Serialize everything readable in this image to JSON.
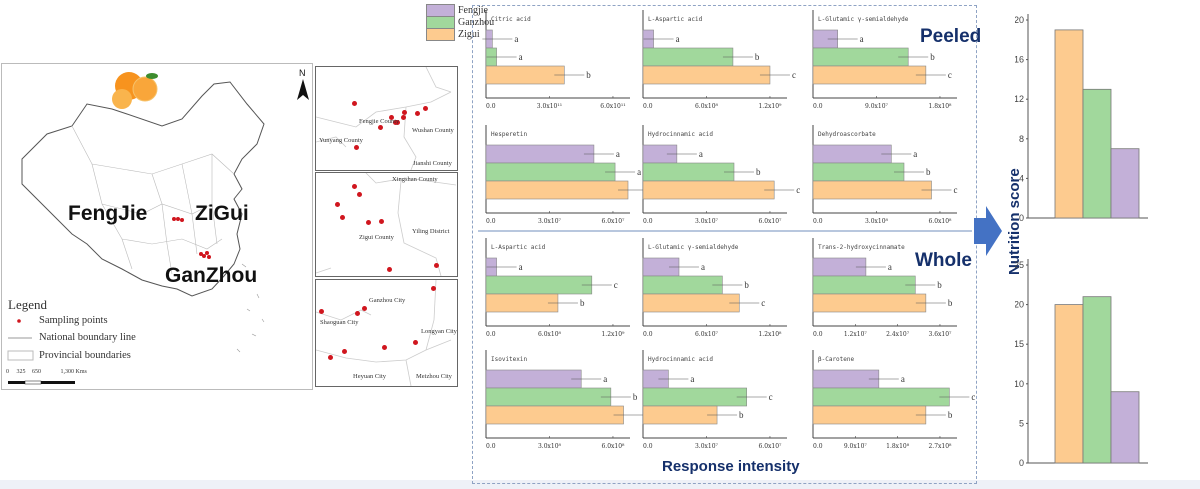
{
  "map": {
    "cities": [
      "FengJie",
      "ZiGui",
      "GanZhou"
    ],
    "north_label": "N",
    "legend": {
      "title": "Legend",
      "items": [
        "Sampling points",
        "National boundary line",
        "Provincial boundaries"
      ]
    },
    "scale": {
      "ticks": [
        "0",
        "325",
        "650",
        "1,300"
      ],
      "unit": "Kms"
    },
    "insets": [
      {
        "labels": [
          "Fengjie  County",
          "Wushan County",
          "Yunyang  County",
          "Jianshi County"
        ]
      },
      {
        "labels": [
          "Xingshan County",
          "Yiling District",
          "Zigui County"
        ]
      },
      {
        "labels": [
          "Ganzhou City",
          "Shaoguan City",
          "Longyan City",
          "Heyuan City",
          "Meizhou City"
        ]
      }
    ]
  },
  "legend_series": [
    {
      "name": "Fengjie",
      "color": "#c3b0d8"
    },
    {
      "name": "Ganzhou",
      "color": "#a1d89c"
    },
    {
      "name": "Zigui",
      "color": "#fdcb8f"
    }
  ],
  "labels": {
    "peeled": "Peeled",
    "whole": "Whole",
    "response_intensity": "Response intensity",
    "nutrition_score": "Nutrition score"
  },
  "chart_data": [
    {
      "type": "bar",
      "orientation": "horizontal",
      "group": "Peeled",
      "title": "Citric acid",
      "series_order": [
        "Fengjie",
        "Ganzhou",
        "Zigui"
      ],
      "values": [
        30000000000.0,
        50000000000.0,
        370000000000.0
      ],
      "sig": [
        "a",
        "a",
        "b"
      ],
      "xlim": [
        0,
        600000000000.0
      ],
      "tick_labels": [
        "0.0",
        "3.0x10¹¹",
        "6.0x10¹¹"
      ],
      "tick_values": [
        0,
        300000000000.0,
        600000000000.0
      ]
    },
    {
      "type": "bar",
      "orientation": "horizontal",
      "group": "Peeled",
      "title": "L-Aspartic acid",
      "series_order": [
        "Fengjie",
        "Ganzhou",
        "Zigui"
      ],
      "values": [
        100000000.0,
        850000000.0,
        1200000000.0
      ],
      "sig": [
        "a",
        "b",
        "c"
      ],
      "xlim": [
        0,
        1200000000.0
      ],
      "tick_labels": [
        "0.0",
        "6.0x10⁸",
        "1.2x10⁹"
      ],
      "tick_values": [
        0,
        600000000.0,
        1200000000.0
      ]
    },
    {
      "type": "bar",
      "orientation": "horizontal",
      "group": "Peeled",
      "title": "L-Glutamic γ-semialdehyde",
      "series_order": [
        "Fengjie",
        "Ganzhou",
        "Zigui"
      ],
      "values": [
        35000000.0,
        135000000.0,
        160000000.0
      ],
      "sig": [
        "a",
        "b",
        "c"
      ],
      "xlim": [
        0,
        180000000.0
      ],
      "tick_labels": [
        "0.0",
        "9.0x10⁷",
        "1.8x10⁸"
      ],
      "tick_values": [
        0,
        90000000.0,
        180000000.0
      ]
    },
    {
      "type": "bar",
      "orientation": "horizontal",
      "group": "Peeled",
      "title": "Hesperetin",
      "series_order": [
        "Fengjie",
        "Ganzhou",
        "Zigui"
      ],
      "values": [
        51000000.0,
        61000000.0,
        72000000.0
      ],
      "sig": [
        "a",
        "a",
        "b"
      ],
      "xlim": [
        0,
        60000000.0
      ],
      "tick_labels": [
        "0.0",
        "3.0x10⁷",
        "6.0x10⁷"
      ],
      "tick_values": [
        0,
        30000000.0,
        60000000.0
      ]
    },
    {
      "type": "bar",
      "orientation": "horizontal",
      "group": "Peeled",
      "title": "Hydrocinnamic acid",
      "series_order": [
        "Fengjie",
        "Ganzhou",
        "Zigui"
      ],
      "values": [
        16000000.0,
        43000000.0,
        62000000.0
      ],
      "sig": [
        "a",
        "b",
        "c"
      ],
      "xlim": [
        0,
        60000000.0
      ],
      "tick_labels": [
        "0.0",
        "3.0x10⁷",
        "6.0x10⁷"
      ],
      "tick_values": [
        0,
        30000000.0,
        60000000.0
      ]
    },
    {
      "type": "bar",
      "orientation": "horizontal",
      "group": "Peeled",
      "title": "Dehydroascorbate",
      "series_order": [
        "Fengjie",
        "Ganzhou",
        "Zigui"
      ],
      "values": [
        370000000.0,
        430000000.0,
        560000000.0
      ],
      "sig": [
        "a",
        "b",
        "c"
      ],
      "xlim": [
        0,
        600000000.0
      ],
      "tick_labels": [
        "0.0",
        "3.0x10⁸",
        "6.0x10⁸"
      ],
      "tick_values": [
        0,
        300000000.0,
        600000000.0
      ]
    },
    {
      "type": "bar",
      "orientation": "horizontal",
      "group": "Whole",
      "title": "L-Aspartic acid",
      "series_order": [
        "Fengjie",
        "Ganzhou",
        "Zigui"
      ],
      "values": [
        100000000.0,
        1000000000.0,
        680000000.0
      ],
      "sig": [
        "a",
        "c",
        "b"
      ],
      "xlim": [
        0,
        1200000000.0
      ],
      "tick_labels": [
        "0.0",
        "6.0x10⁸",
        "1.2x10⁹"
      ],
      "tick_values": [
        0,
        600000000.0,
        1200000000.0
      ]
    },
    {
      "type": "bar",
      "orientation": "horizontal",
      "group": "Whole",
      "title": "L-Glutamic γ-semialdehyde",
      "series_order": [
        "Fengjie",
        "Ganzhou",
        "Zigui"
      ],
      "values": [
        34000000.0,
        75000000.0,
        91000000.0
      ],
      "sig": [
        "a",
        "b",
        "c"
      ],
      "xlim": [
        0,
        120000000.0
      ],
      "tick_labels": [
        "0.0",
        "6.0x10⁷",
        "1.2x10⁸"
      ],
      "tick_values": [
        0,
        60000000.0,
        120000000.0
      ]
    },
    {
      "type": "bar",
      "orientation": "horizontal",
      "group": "Whole",
      "title": "Trans-2-hydroxycinnamate",
      "series_order": [
        "Fengjie",
        "Ganzhou",
        "Zigui"
      ],
      "values": [
        15000000.0,
        29000000.0,
        32000000.0
      ],
      "sig": [
        "a",
        "b",
        "b"
      ],
      "xlim": [
        0,
        36000000.0
      ],
      "tick_labels": [
        "0.0",
        "1.2x10⁷",
        "2.4x10⁷",
        "3.6x10⁷"
      ],
      "tick_values": [
        0,
        12000000.0,
        24000000.0,
        36000000.0
      ]
    },
    {
      "type": "bar",
      "orientation": "horizontal",
      "group": "Whole",
      "title": "Isovitexin",
      "series_order": [
        "Fengjie",
        "Ganzhou",
        "Zigui"
      ],
      "values": [
        450000000.0,
        590000000.0,
        650000000.0
      ],
      "sig": [
        "a",
        "b",
        "b"
      ],
      "xlim": [
        0,
        600000000.0
      ],
      "tick_labels": [
        "0.0",
        "3.0x10⁸",
        "6.0x10⁸"
      ],
      "tick_values": [
        0,
        300000000.0,
        600000000.0
      ]
    },
    {
      "type": "bar",
      "orientation": "horizontal",
      "group": "Whole",
      "title": "Hydrocinnamic acid",
      "series_order": [
        "Fengjie",
        "Ganzhou",
        "Zigui"
      ],
      "values": [
        12000000.0,
        49000000.0,
        35000000.0
      ],
      "sig": [
        "a",
        "c",
        "b"
      ],
      "xlim": [
        0,
        60000000.0
      ],
      "tick_labels": [
        "0.0",
        "3.0x10⁷",
        "6.0x10⁷"
      ],
      "tick_values": [
        0,
        30000000.0,
        60000000.0
      ]
    },
    {
      "type": "bar",
      "orientation": "horizontal",
      "group": "Whole",
      "title": "β-Carotene",
      "series_order": [
        "Fengjie",
        "Ganzhou",
        "Zigui"
      ],
      "values": [
        140000000.0,
        290000000.0,
        240000000.0
      ],
      "sig": [
        "a",
        "c",
        "b"
      ],
      "xlim": [
        0,
        270000000.0
      ],
      "tick_labels": [
        "0.0",
        "9.0x10⁷",
        "1.8x10⁸",
        "2.7x10⁸"
      ],
      "tick_values": [
        0,
        90000000.0,
        180000000.0,
        270000000.0
      ]
    },
    {
      "type": "bar",
      "group": "Peeled",
      "title": "Peeled",
      "ylabel": "Nutrition score",
      "categories": [
        "Zigui",
        "Ganzhou",
        "Fengjie"
      ],
      "values": [
        19,
        13,
        7
      ],
      "ylim": [
        0,
        20
      ],
      "yticks": [
        0,
        4,
        8,
        12,
        16,
        20
      ]
    },
    {
      "type": "bar",
      "group": "Whole",
      "title": "Whole",
      "ylabel": "Nutrition score",
      "categories": [
        "Zigui",
        "Ganzhou",
        "Fengjie"
      ],
      "values": [
        20,
        21,
        9
      ],
      "ylim": [
        0,
        25
      ],
      "yticks": [
        0,
        5,
        10,
        15,
        20,
        25
      ]
    }
  ]
}
